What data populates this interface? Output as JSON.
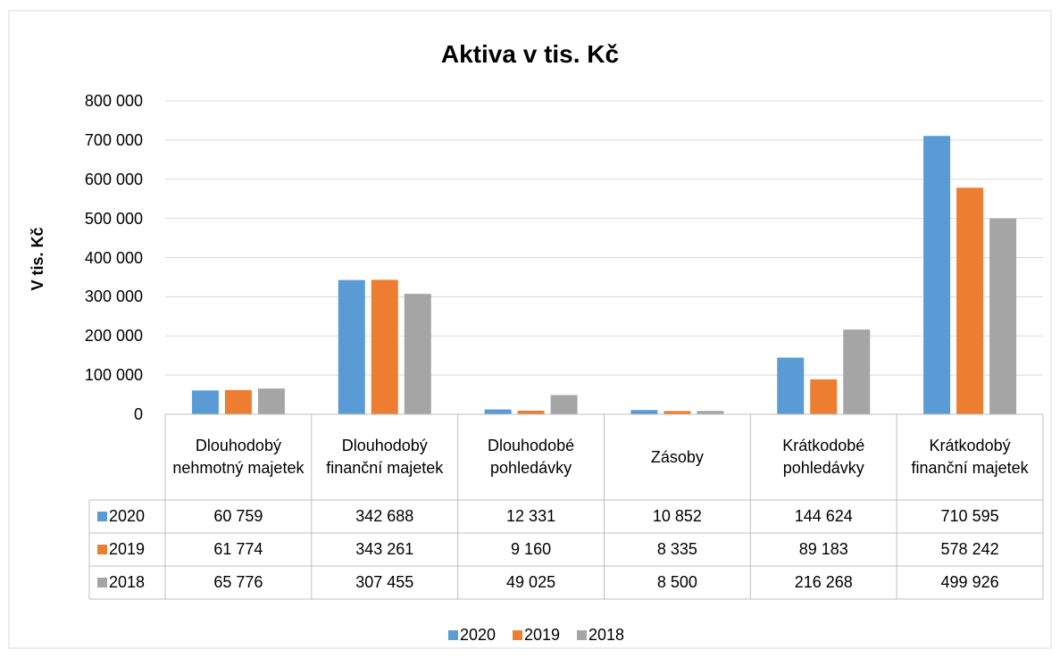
{
  "chart_data": {
    "type": "bar",
    "title": "Aktiva v tis. Kč",
    "y_label": "V tis. Kč",
    "categories": [
      "Dlouhodobý nehmotný majetek",
      "Dlouhodobý finanční majetek",
      "Dlouhodobé pohledávky",
      "Zásoby",
      "Krátkodobé pohledávky",
      "Krátkodobý finanční majetek"
    ],
    "series": [
      {
        "name": "2020",
        "color": "#5b9bd5",
        "values": [
          60759,
          342688,
          12331,
          10852,
          144624,
          710595
        ],
        "value_labels": [
          "60 759",
          "342 688",
          "12 331",
          "10 852",
          "144 624",
          "710 595"
        ]
      },
      {
        "name": "2019",
        "color": "#ed7d31",
        "values": [
          61774,
          343261,
          9160,
          8335,
          89183,
          578242
        ],
        "value_labels": [
          "61 774",
          "343 261",
          "9 160",
          "8 335",
          "89 183",
          "578 242"
        ]
      },
      {
        "name": "2018",
        "color": "#a5a5a5",
        "values": [
          65776,
          307455,
          49025,
          8500,
          216268,
          499926
        ],
        "value_labels": [
          "65 776",
          "307 455",
          "49 025",
          "8 500",
          "216 268",
          "499 926"
        ]
      }
    ],
    "ylim": [
      0,
      800000
    ],
    "yticks": [
      0,
      {
        "value": 100000,
        "label": "100 000"
      },
      {
        "value": 200000,
        "label": "200 000"
      },
      {
        "value": 300000,
        "label": "300 000"
      },
      {
        "value": 400000,
        "label": "400 000"
      },
      {
        "value": 500000,
        "label": "500 000"
      },
      {
        "value": 600000,
        "label": "600 000"
      },
      {
        "value": 700000,
        "label": "700 000"
      },
      {
        "value": 800000,
        "label": "800 000"
      }
    ],
    "grid": true,
    "legend": "bottom"
  }
}
